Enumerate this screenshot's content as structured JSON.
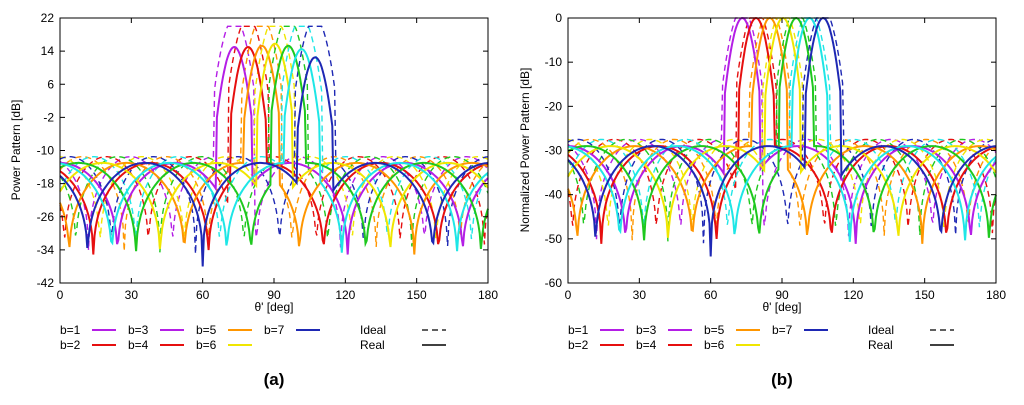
{
  "colors": {
    "b1": "#b41ee6",
    "b2": "#e60f0f",
    "b3": "#b41ee6",
    "b4": "#e60f0f",
    "b5": "#ff9600",
    "b6": "#f0e600",
    "b7": "#1ec81e",
    "b7b": "#1e28b4",
    "cyan": "#1ee6e6",
    "axis": "#000000"
  },
  "legend": {
    "labels": [
      "b=1",
      "b=2",
      "b=3",
      "b=4",
      "b=5",
      "b=6",
      "b=7"
    ],
    "ideal": "Ideal",
    "real": "Real"
  },
  "panels": [
    {
      "label": "(a)"
    },
    {
      "label": "(b)"
    }
  ],
  "chart_data": [
    {
      "type": "line",
      "title": "",
      "xlabel": "θ' [deg]",
      "ylabel": "Power Pattern [dB]",
      "xlim": [
        0,
        180
      ],
      "ylim": [
        -42,
        22
      ],
      "xticks": [
        "0",
        "30",
        "60",
        "90",
        "120",
        "150",
        "180"
      ],
      "yticks": [
        "22",
        "14",
        "6",
        "-2",
        "-10",
        "-18",
        "-26",
        "-34",
        "-42"
      ],
      "grid": false,
      "series": [
        {
          "name": "b=1",
          "beam_center": 73.3,
          "real_peak": 15.0,
          "ideal_peak": 20.0
        },
        {
          "name": "b=2",
          "beam_center": 79.1,
          "real_peak": 15.0,
          "ideal_peak": 20.0
        },
        {
          "name": "b=3",
          "beam_center": 84.9,
          "real_peak": 15.3,
          "ideal_peak": 20.0
        },
        {
          "name": "b=4",
          "beam_center": 90.4,
          "real_peak": 15.8,
          "ideal_peak": 20.0
        },
        {
          "name": "b=5",
          "beam_center": 96.0,
          "real_peak": 15.3,
          "ideal_peak": 20.0
        },
        {
          "name": "b=6",
          "beam_center": 101.6,
          "real_peak": 14.5,
          "ideal_peak": 20.0
        },
        {
          "name": "b=7",
          "beam_center": 107.3,
          "real_peak": 12.5,
          "ideal_peak": 20.0
        }
      ]
    },
    {
      "type": "line",
      "title": "",
      "xlabel": "θ' [deg]",
      "ylabel": "Normalized Power Pattern [dB]",
      "xlim": [
        0,
        180
      ],
      "ylim": [
        -60,
        0
      ],
      "xticks": [
        "0",
        "30",
        "60",
        "90",
        "120",
        "150",
        "180"
      ],
      "yticks": [
        "0",
        "-10",
        "-20",
        "-30",
        "-40",
        "-50",
        "-60"
      ],
      "grid": false,
      "series": [
        {
          "name": "b=1",
          "beam_center": 73.3,
          "peak": 0
        },
        {
          "name": "b=2",
          "beam_center": 79.1,
          "peak": 0
        },
        {
          "name": "b=3",
          "beam_center": 84.9,
          "peak": 0
        },
        {
          "name": "b=4",
          "beam_center": 90.4,
          "peak": 0
        },
        {
          "name": "b=5",
          "beam_center": 96.0,
          "peak": 0
        },
        {
          "name": "b=6",
          "beam_center": 101.6,
          "peak": 0
        },
        {
          "name": "b=7",
          "beam_center": 107.3,
          "peak": 0
        }
      ]
    }
  ]
}
